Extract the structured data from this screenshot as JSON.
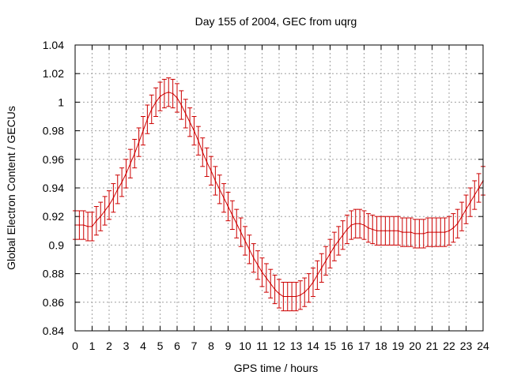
{
  "chart_data": {
    "type": "line",
    "title": "Day 155 of 2004, GEC from uqrg",
    "xlabel": "GPS time / hours",
    "ylabel": "Global Electron Content / GECUs",
    "xlim": [
      0,
      24
    ],
    "ylim": [
      0.84,
      1.04
    ],
    "x_ticks": [
      "0",
      "1",
      "2",
      "3",
      "4",
      "5",
      "6",
      "7",
      "8",
      "9",
      "10",
      "11",
      "12",
      "13",
      "14",
      "15",
      "16",
      "17",
      "18",
      "19",
      "20",
      "21",
      "22",
      "23",
      "24"
    ],
    "y_ticks": [
      "0.84",
      "0.86",
      "0.88",
      "0.9",
      "0.92",
      "0.94",
      "0.96",
      "0.98",
      "1",
      "1.02",
      "1.04"
    ],
    "grid": true,
    "series_color": "#cc0000",
    "error_bar": 0.01,
    "x": [
      0,
      0.25,
      0.5,
      0.75,
      1,
      1.25,
      1.5,
      1.75,
      2,
      2.25,
      2.5,
      2.75,
      3,
      3.25,
      3.5,
      3.75,
      4,
      4.25,
      4.5,
      4.75,
      5,
      5.25,
      5.5,
      5.75,
      6,
      6.25,
      6.5,
      6.75,
      7,
      7.25,
      7.5,
      7.75,
      8,
      8.25,
      8.5,
      8.75,
      9,
      9.25,
      9.5,
      9.75,
      10,
      10.25,
      10.5,
      10.75,
      11,
      11.25,
      11.5,
      11.75,
      12,
      12.25,
      12.5,
      12.75,
      13,
      13.25,
      13.5,
      13.75,
      14,
      14.25,
      14.5,
      14.75,
      15,
      15.25,
      15.5,
      15.75,
      16,
      16.25,
      16.5,
      16.75,
      17,
      17.25,
      17.5,
      17.75,
      18,
      18.25,
      18.5,
      18.75,
      19,
      19.25,
      19.5,
      19.75,
      20,
      20.25,
      20.5,
      20.75,
      21,
      21.25,
      21.5,
      21.75,
      22,
      22.25,
      22.5,
      22.75,
      23,
      23.25,
      23.5,
      23.75,
      24
    ],
    "y": [
      0.914,
      0.914,
      0.914,
      0.913,
      0.913,
      0.917,
      0.92,
      0.924,
      0.928,
      0.933,
      0.939,
      0.944,
      0.95,
      0.957,
      0.964,
      0.972,
      0.98,
      0.988,
      0.995,
      1.0,
      1.004,
      1.006,
      1.007,
      1.006,
      1.003,
      0.998,
      0.992,
      0.986,
      0.98,
      0.973,
      0.965,
      0.958,
      0.952,
      0.945,
      0.939,
      0.933,
      0.927,
      0.921,
      0.915,
      0.909,
      0.903,
      0.897,
      0.891,
      0.886,
      0.881,
      0.877,
      0.873,
      0.869,
      0.866,
      0.864,
      0.864,
      0.864,
      0.864,
      0.865,
      0.867,
      0.87,
      0.874,
      0.879,
      0.884,
      0.889,
      0.894,
      0.899,
      0.903,
      0.907,
      0.911,
      0.914,
      0.915,
      0.915,
      0.914,
      0.912,
      0.911,
      0.91,
      0.91,
      0.91,
      0.91,
      0.91,
      0.91,
      0.909,
      0.909,
      0.909,
      0.908,
      0.908,
      0.908,
      0.909,
      0.909,
      0.909,
      0.909,
      0.909,
      0.91,
      0.912,
      0.915,
      0.92,
      0.925,
      0.93,
      0.935,
      0.94,
      0.945
    ]
  }
}
